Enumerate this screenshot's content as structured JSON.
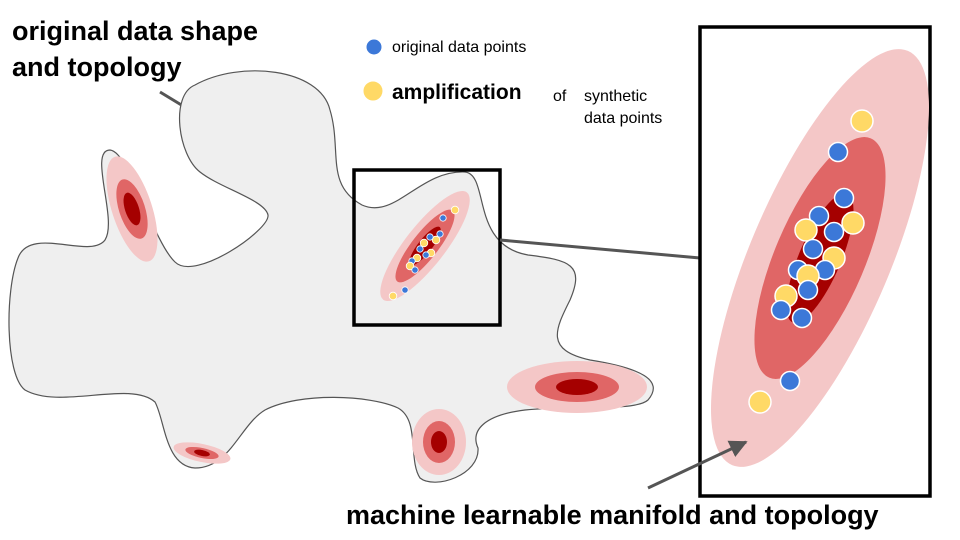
{
  "diagram": {
    "title_line1": "original data shape",
    "title_line2": "and topology",
    "legend": {
      "original_label": "original data points",
      "amplification_word": "amplification",
      "of_word": "of",
      "synthetic_line1": "synthetic",
      "synthetic_line2": "data points"
    },
    "bottom_label": "machine learnable manifold and topology"
  },
  "colors": {
    "shape_fill": "#efefef",
    "shape_stroke": "#555555",
    "blob_outer": "#f4c7c7",
    "blob_mid": "#e06666",
    "blob_core": "#a50000",
    "original_point": "#3c78d8",
    "synthetic_point": "#ffd966",
    "arrow": "#555555",
    "box": "#000000"
  },
  "icons": {
    "original": "blue-dot-icon",
    "synthetic": "yellow-dot-icon"
  }
}
